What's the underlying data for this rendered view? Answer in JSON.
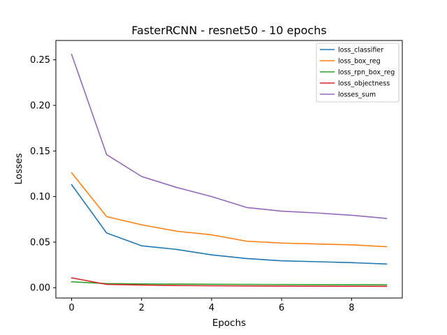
{
  "chart_data": {
    "type": "line",
    "title": "FasterRCNN - resnet50 - 10 epochs",
    "xlabel": "Epochs",
    "ylabel": "Losses",
    "xlim": [
      -0.45,
      9.45
    ],
    "ylim": [
      -0.0113,
      0.2712
    ],
    "xticks": [
      0,
      2,
      4,
      6,
      8
    ],
    "xtick_labels": [
      "0",
      "2",
      "4",
      "6",
      "8"
    ],
    "yticks": [
      0.0,
      0.05,
      0.1,
      0.15,
      0.2,
      0.25
    ],
    "ytick_labels": [
      "0.00",
      "0.05",
      "0.10",
      "0.15",
      "0.20",
      "0.25"
    ],
    "grid": false,
    "legend_position": "top-right",
    "x": [
      0,
      1,
      2,
      3,
      4,
      5,
      6,
      7,
      8,
      9
    ],
    "series": [
      {
        "name": "loss_classifier",
        "color": "#1f77b4",
        "values": [
          0.113,
          0.06,
          0.046,
          0.042,
          0.036,
          0.032,
          0.0295,
          0.0285,
          0.0275,
          0.026
        ]
      },
      {
        "name": "loss_box_reg",
        "color": "#ff7f0e",
        "values": [
          0.126,
          0.078,
          0.069,
          0.062,
          0.058,
          0.051,
          0.049,
          0.048,
          0.047,
          0.045
        ]
      },
      {
        "name": "loss_rpn_box_reg",
        "color": "#2ca02c",
        "values": [
          0.0065,
          0.0045,
          0.0042,
          0.004,
          0.0038,
          0.0036,
          0.0035,
          0.0034,
          0.0033,
          0.0032
        ]
      },
      {
        "name": "loss_objectness",
        "color": "#d62728",
        "values": [
          0.0108,
          0.0037,
          0.0029,
          0.0024,
          0.0021,
          0.0019,
          0.0018,
          0.0017,
          0.0016,
          0.0015
        ]
      },
      {
        "name": "losses_sum",
        "color": "#9467bd",
        "values": [
          0.256,
          0.146,
          0.122,
          0.11,
          0.1,
          0.088,
          0.084,
          0.082,
          0.0795,
          0.076
        ]
      }
    ]
  }
}
